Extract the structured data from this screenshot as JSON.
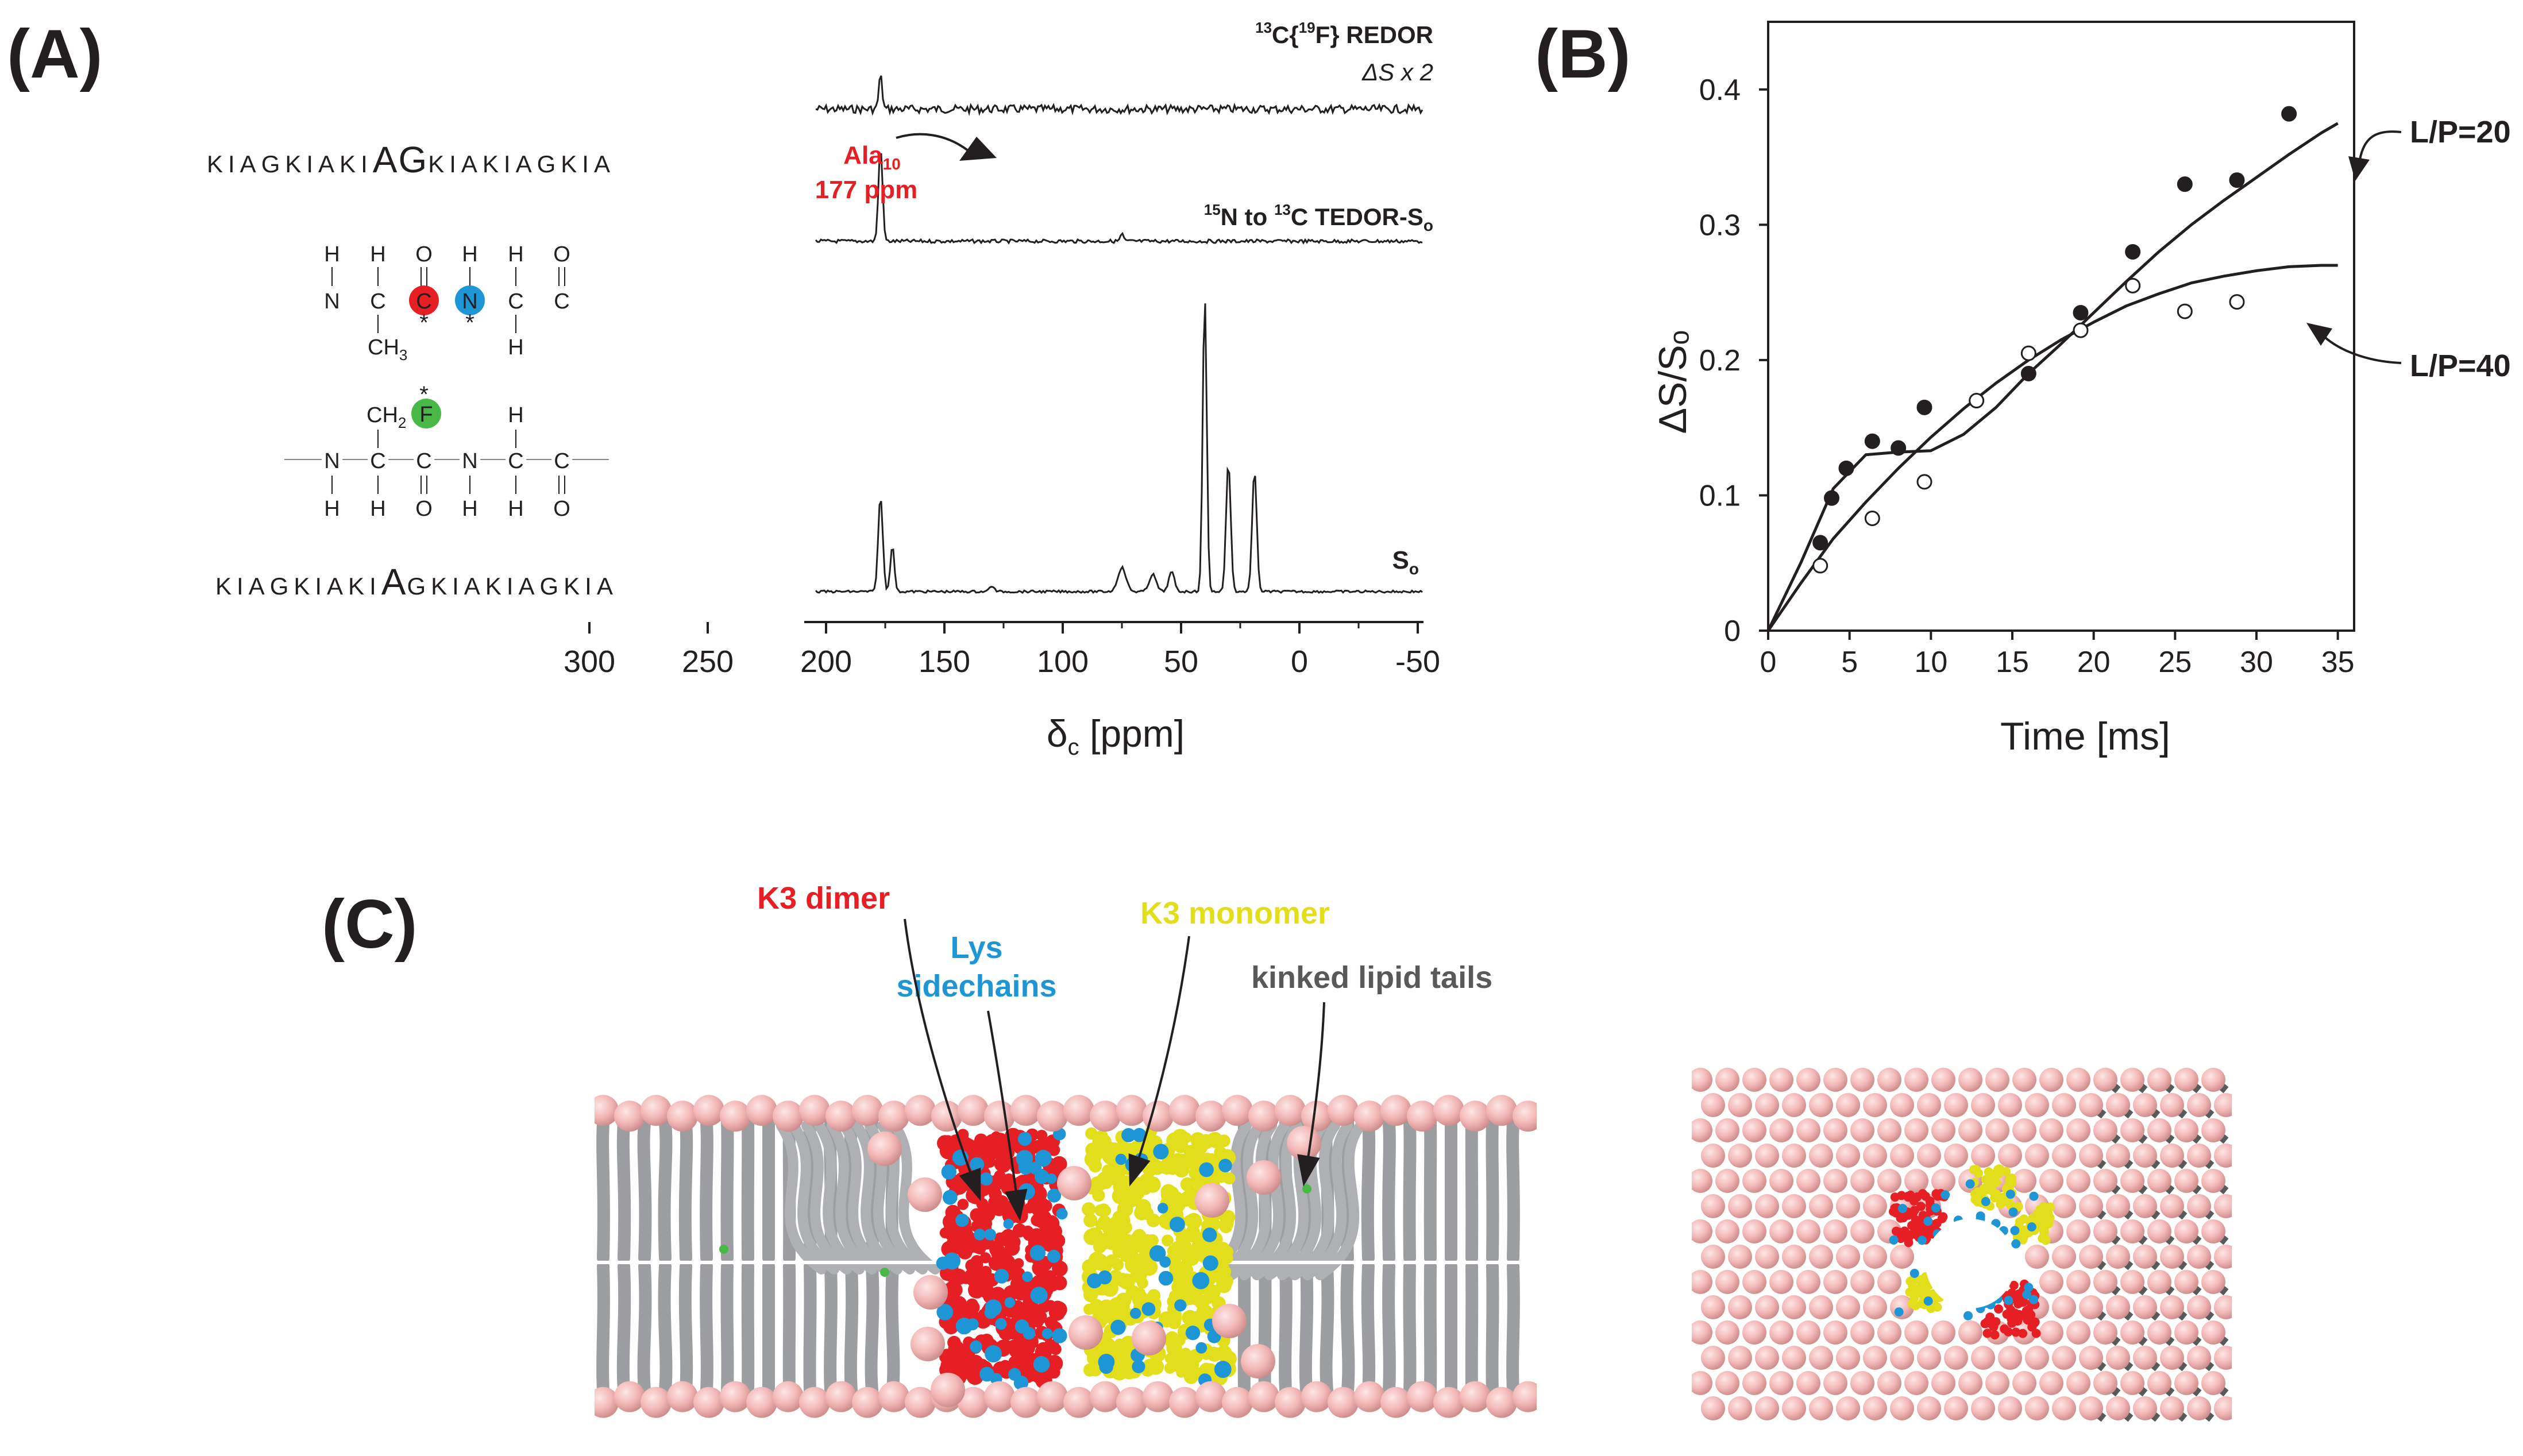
{
  "panels": {
    "a": "(A)",
    "b": "(B)",
    "c": "(C)"
  },
  "sequences": {
    "top": {
      "pre": "KIAGKIAKI",
      "mid": "AG",
      "post": "KIAKIAGKIA"
    },
    "bottom": {
      "pre": "KIAGKIAKI",
      "mid": "A",
      "post": "GKIAKIAGKIA"
    }
  },
  "chem": {
    "h": "H",
    "n": "N",
    "c": "C",
    "o": "O",
    "f": "F",
    "star": "*",
    "ch": "CH",
    "sub3": "3",
    "sub2": "2"
  },
  "spectra": {
    "redor": {
      "pre": "13",
      "a": "C{",
      "sup": "19",
      "b": "F} REDOR"
    },
    "delta": "ΔS x 2",
    "ala": {
      "name": "Ala",
      "sub": "10",
      "ppm": "177 ppm"
    },
    "tedor": {
      "sup1": "15",
      "a": "N to ",
      "sup2": "13",
      "b": "C TEDOR-S",
      "sub": "o"
    },
    "so": {
      "s": "S",
      "sub": "o"
    },
    "axis": {
      "delta": "δ",
      "sub": "c",
      "unit": " [ppm]",
      "ticks": [
        300,
        250,
        200,
        150,
        100,
        50,
        0,
        -50
      ]
    }
  },
  "chart_data": {
    "type": "scatter",
    "title": "",
    "xlabel": "Time [ms]",
    "ylabel": "ΔS/Sₒ",
    "xlim": [
      0,
      36
    ],
    "ylim": [
      0,
      0.45
    ],
    "xticks": [
      0,
      5,
      10,
      15,
      20,
      25,
      30,
      35
    ],
    "yticks": [
      0,
      0.1,
      0.2,
      0.3,
      0.4
    ],
    "series": [
      {
        "name": "L/P=20",
        "marker": "filled",
        "x": [
          3.2,
          3.9,
          4.8,
          6.4,
          8.0,
          9.6,
          16.0,
          19.2,
          22.4,
          25.6,
          28.8,
          32.0
        ],
        "y": [
          0.065,
          0.098,
          0.12,
          0.14,
          0.135,
          0.165,
          0.19,
          0.235,
          0.28,
          0.33,
          0.333,
          0.382
        ],
        "fit_x": [
          0,
          2,
          4,
          6,
          8,
          10,
          12,
          14,
          16,
          18,
          20,
          22,
          24,
          26,
          28,
          30,
          32,
          34,
          35
        ],
        "fit_y": [
          0,
          0.05,
          0.105,
          0.13,
          0.132,
          0.133,
          0.145,
          0.165,
          0.19,
          0.212,
          0.235,
          0.258,
          0.28,
          0.3,
          0.318,
          0.335,
          0.352,
          0.368,
          0.375
        ]
      },
      {
        "name": "L/P=40",
        "marker": "open",
        "x": [
          3.2,
          6.4,
          9.6,
          12.8,
          16.0,
          19.2,
          22.4,
          25.6,
          28.8
        ],
        "y": [
          0.048,
          0.083,
          0.11,
          0.17,
          0.205,
          0.222,
          0.255,
          0.236,
          0.243
        ],
        "fit_x": [
          0,
          2,
          4,
          6,
          8,
          10,
          12,
          14,
          16,
          18,
          20,
          22,
          24,
          26,
          28,
          30,
          32,
          34,
          35
        ],
        "fit_y": [
          0,
          0.035,
          0.068,
          0.095,
          0.12,
          0.143,
          0.164,
          0.183,
          0.2,
          0.215,
          0.228,
          0.24,
          0.249,
          0.257,
          0.262,
          0.266,
          0.269,
          0.27,
          0.27
        ]
      }
    ]
  },
  "labels_c": {
    "dimer": "K3 dimer",
    "lys": [
      "Lys",
      "sidechains"
    ],
    "monomer": "K3 monomer",
    "kinked": "kinked lipid tails"
  },
  "colors": {
    "text": "#231f20",
    "red": "#e51f24",
    "blue": "#1e96d6",
    "yellow": "#e3de1c",
    "green": "#4ab847",
    "pink": "#f2b5b4",
    "gray": "#a7a9ac"
  }
}
